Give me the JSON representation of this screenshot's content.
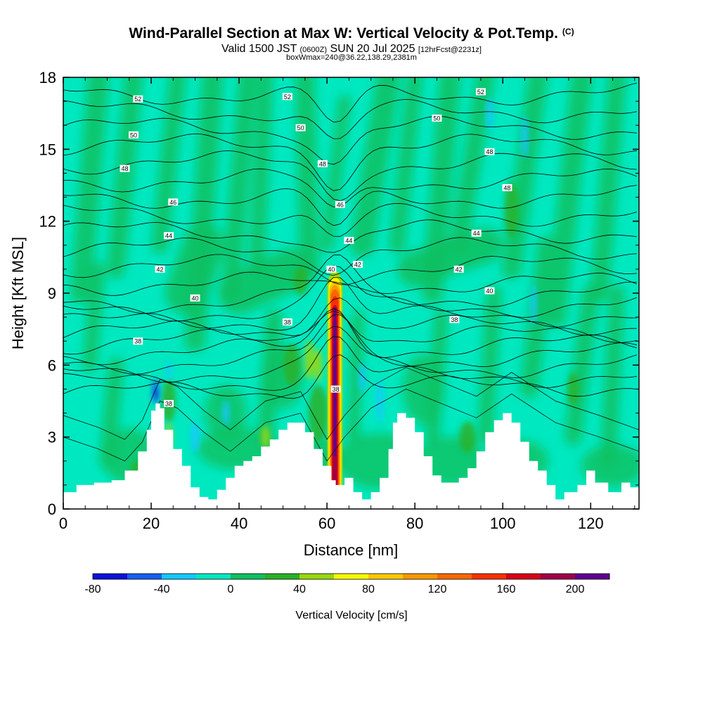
{
  "chart_data": {
    "type": "heatmap",
    "title": "Wind-Parallel Section at Max W: Vertical Velocity & Pot.Temp.",
    "title_tag": "(C)",
    "subtitle": {
      "valid": "Valid 1500 JST",
      "utc": "(0600Z)",
      "date": "SUN 20 Jul 2025",
      "forecast": "[12hrFcst@2231z]"
    },
    "subtitle2": "boxWmax=240@36.22,138.29,2381m",
    "xlabel": "Distance [nm]",
    "ylabel": "Height [Kft MSL]",
    "xlim": [
      0,
      131
    ],
    "ylim": [
      0,
      18
    ],
    "x_ticks": [
      "0",
      "20",
      "40",
      "60",
      "80",
      "100",
      "120"
    ],
    "y_ticks": [
      "0",
      "3",
      "6",
      "9",
      "12",
      "15",
      "18"
    ],
    "colorbar": {
      "label": "Vertical Velocity [cm/s]",
      "min": -80,
      "step": 20,
      "tick_labels": [
        "-80",
        "-40",
        "0",
        "40",
        "80",
        "120",
        "160",
        "200"
      ],
      "colors": [
        "#0a14d8",
        "#1560f0",
        "#14c8ff",
        "#00e8c0",
        "#10c060",
        "#28b028",
        "#98d810",
        "#f8f800",
        "#f8c800",
        "#f89800",
        "#f86800",
        "#f83000",
        "#d80018",
        "#a00048",
        "#600090"
      ]
    },
    "max_w": {
      "x": 61.8,
      "z_base": 0.8,
      "z_top": 9.6,
      "value": 240
    },
    "theta_levels": [
      38,
      40,
      42,
      44,
      46,
      48,
      50,
      52
    ],
    "contour_labels": [
      {
        "text": "52",
        "x": 17,
        "z": 17.1
      },
      {
        "text": "52",
        "x": 51,
        "z": 17.2
      },
      {
        "text": "52",
        "x": 95,
        "z": 17.4
      },
      {
        "text": "50",
        "x": 16,
        "z": 15.6
      },
      {
        "text": "50",
        "x": 54,
        "z": 15.9
      },
      {
        "text": "50",
        "x": 85,
        "z": 16.3
      },
      {
        "text": "48",
        "x": 14,
        "z": 14.2
      },
      {
        "text": "48",
        "x": 59,
        "z": 14.4
      },
      {
        "text": "48",
        "x": 97,
        "z": 14.9
      },
      {
        "text": "48",
        "x": 101,
        "z": 13.4
      },
      {
        "text": "46",
        "x": 25,
        "z": 12.8
      },
      {
        "text": "46",
        "x": 63,
        "z": 12.7
      },
      {
        "text": "44",
        "x": 24,
        "z": 11.4
      },
      {
        "text": "44",
        "x": 65,
        "z": 11.2
      },
      {
        "text": "44",
        "x": 94,
        "z": 11.5
      },
      {
        "text": "42",
        "x": 22,
        "z": 10.0
      },
      {
        "text": "42",
        "x": 67,
        "z": 10.2
      },
      {
        "text": "42",
        "x": 90,
        "z": 10.0
      },
      {
        "text": "40",
        "x": 30,
        "z": 8.8
      },
      {
        "text": "40",
        "x": 61,
        "z": 10.0
      },
      {
        "text": "40",
        "x": 97,
        "z": 9.1
      },
      {
        "text": "38",
        "x": 17,
        "z": 7.0
      },
      {
        "text": "38",
        "x": 51,
        "z": 7.8
      },
      {
        "text": "38",
        "x": 89,
        "z": 7.9
      },
      {
        "text": "38",
        "x": 62,
        "z": 5.0
      },
      {
        "text": "38",
        "x": 24,
        "z": 4.4
      }
    ]
  }
}
